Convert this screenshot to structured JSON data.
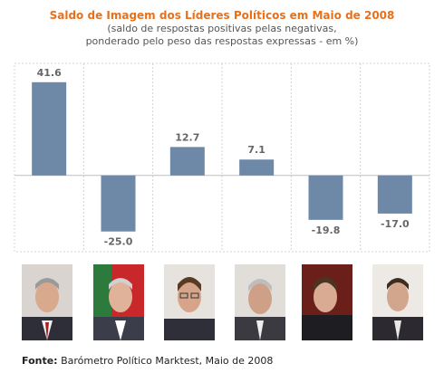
{
  "chart_data": {
    "type": "bar",
    "title": "Saldo de Imagem dos Líderes Políticos em Maio de 2008",
    "subtitle_lines": [
      "(saldo de respostas positivas pelas negativas,",
      "ponderado pelo peso das respostas expressas - em %)"
    ],
    "categories": [
      "",
      "",
      "",
      "",
      "",
      ""
    ],
    "values": [
      41.6,
      -25.0,
      12.7,
      7.1,
      -19.8,
      -17.0
    ],
    "value_labels": [
      "41.6",
      "-25.0",
      "12.7",
      "7.1",
      "-19.8",
      "-17.0"
    ],
    "xlabel": "",
    "ylabel": "",
    "ylim": [
      -34,
      50
    ],
    "grid": "vertical-dotted",
    "bar_color": "#6e88a8",
    "label_color": "#666666",
    "title_color": "#e8701a"
  },
  "source": {
    "label": "Fonte:",
    "text": "Barómetro Político Marktest, Maio de 2008"
  },
  "portraits": [
    {
      "icon": "portrait-photo-1"
    },
    {
      "icon": "portrait-photo-2"
    },
    {
      "icon": "portrait-photo-3"
    },
    {
      "icon": "portrait-photo-4"
    },
    {
      "icon": "portrait-photo-5"
    },
    {
      "icon": "portrait-photo-6"
    }
  ]
}
